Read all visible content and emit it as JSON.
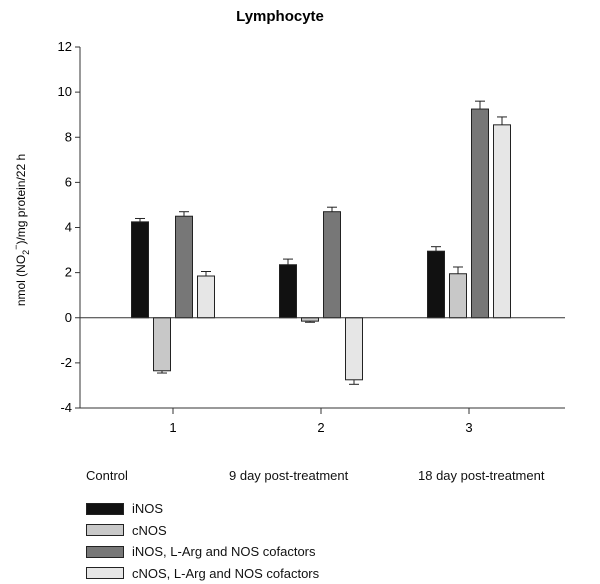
{
  "colors": {
    "iNOS": "#111111",
    "cNOS": "#c8c8c8",
    "iNOS_LArg": "#777777",
    "cNOS_LArg": "#e6e6e6"
  },
  "group_labels": [
    "Control",
    "9 day post-treatment",
    "18 day post-treatment"
  ],
  "chart_data": {
    "type": "bar",
    "title": "Lymphocyte",
    "xlabel": "",
    "ylabel": "nmol (NO2⁻)/mg protein/22 h",
    "ylabel_parts": {
      "pre": "nmol (NO",
      "sub": "2",
      "sup": "−",
      "post": ")/mg protein/22 h"
    },
    "categories": [
      "1",
      "2",
      "3"
    ],
    "ylim": [
      -4,
      12
    ],
    "yticks": [
      -4,
      -2,
      0,
      2,
      4,
      6,
      8,
      10,
      12
    ],
    "ytick_labels": [
      "-4",
      "-2",
      "0",
      "2",
      "4",
      "6",
      "8",
      "10",
      "12"
    ],
    "grid": false,
    "legend_position": "bottom-left",
    "series": [
      {
        "name": "iNOS",
        "color": "#111111",
        "values": [
          4.25,
          2.35,
          2.95
        ],
        "errors": [
          0.15,
          0.25,
          0.2
        ]
      },
      {
        "name": "cNOS",
        "color": "#c8c8c8",
        "values": [
          -2.35,
          -0.15,
          1.95
        ],
        "errors": [
          0.1,
          0.05,
          0.3
        ]
      },
      {
        "name": "iNOS, L-Arg and NOS cofactors",
        "color": "#777777",
        "values": [
          4.5,
          4.7,
          9.25
        ],
        "errors": [
          0.2,
          0.2,
          0.35
        ]
      },
      {
        "name": "cNOS, L-Arg and NOS cofactors",
        "color": "#e6e6e6",
        "values": [
          1.85,
          -2.75,
          8.55
        ],
        "errors": [
          0.2,
          0.2,
          0.35
        ]
      }
    ]
  }
}
